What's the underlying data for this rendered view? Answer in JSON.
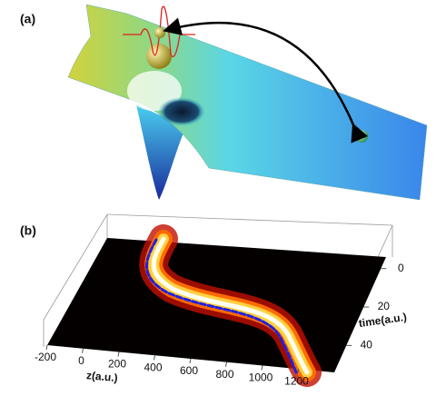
{
  "panel_labels": [
    "(a)",
    "(b)"
  ],
  "chart_data": {
    "type": "heatmap",
    "xlabel": "z(a.u.)",
    "ylabel": "time(a.u.)",
    "xlim": [
      -200,
      1400
    ],
    "xticks": [
      -200,
      0,
      200,
      400,
      600,
      800,
      1000,
      1200
    ],
    "ylim": [
      -6,
      54
    ],
    "yticks": [
      0,
      20,
      40
    ],
    "color": "#000000"
  }
}
